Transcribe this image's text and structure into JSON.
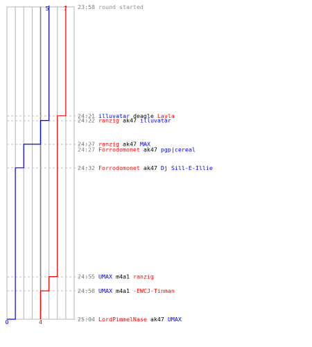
{
  "chart_data": {
    "type": "line",
    "title": "",
    "xlabel": "",
    "ylabel": "",
    "grid": true,
    "y_time_range": [
      "23:58",
      "25:04"
    ],
    "x_alive_range": [
      0,
      8
    ],
    "colors": {
      "blue": "#0000ff",
      "red": "#ff0000",
      "grid": "#b4b4b4",
      "grid_center": "#808080",
      "dashed": "#bdbdbd",
      "time_text": "#808080",
      "black": "#000000",
      "info": "#909090"
    },
    "team_start_counts": {
      "blue": 5,
      "red": 7
    },
    "team_end_counts": {
      "blue": 0,
      "red": 4
    },
    "events": [
      {
        "time": "23:58",
        "info": "round started",
        "blue_alive": 5,
        "red_alive": 7
      },
      {
        "time": "24:21",
        "killer": "illuvatar",
        "killer_team": "blue",
        "weapon": "deagle",
        "victim": "Layla",
        "victim_team": "red",
        "blue_alive": 5,
        "red_alive": 6
      },
      {
        "time": "24:22",
        "killer": "ranzig",
        "killer_team": "red",
        "weapon": "ak47",
        "victim": "illuvatar",
        "victim_team": "blue",
        "blue_alive": 4,
        "red_alive": 6
      },
      {
        "time": "24:27",
        "killer": "ranzig",
        "killer_team": "red",
        "weapon": "ak47",
        "victim": "MAX",
        "victim_team": "blue",
        "blue_alive": 3,
        "red_alive": 6
      },
      {
        "time": "24:27",
        "killer": "Forrodomonet",
        "killer_team": "red",
        "weapon": "ak47",
        "victim": "pgp|cereal",
        "victim_team": "blue",
        "blue_alive": 2,
        "red_alive": 6
      },
      {
        "time": "24:32",
        "killer": "Forrodomonet",
        "killer_team": "red",
        "weapon": "ak47",
        "victim": "Dj Sill-E-Illie",
        "victim_team": "blue",
        "blue_alive": 1,
        "red_alive": 6
      },
      {
        "time": "24:55",
        "killer": "UMAX",
        "killer_team": "blue",
        "weapon": "m4a1",
        "victim": "ranzig",
        "victim_team": "red",
        "blue_alive": 1,
        "red_alive": 5
      },
      {
        "time": "24:58",
        "killer": "UMAX",
        "killer_team": "blue",
        "weapon": "m4a1",
        "victim": "-EWCJ-Tinman",
        "victim_team": "red",
        "blue_alive": 1,
        "red_alive": 4
      },
      {
        "time": "25:04",
        "killer": "LordPimmelNase",
        "killer_team": "red",
        "weapon": "ak47",
        "victim": "UMAX",
        "victim_team": "blue",
        "blue_alive": 0,
        "red_alive": 4
      }
    ]
  }
}
